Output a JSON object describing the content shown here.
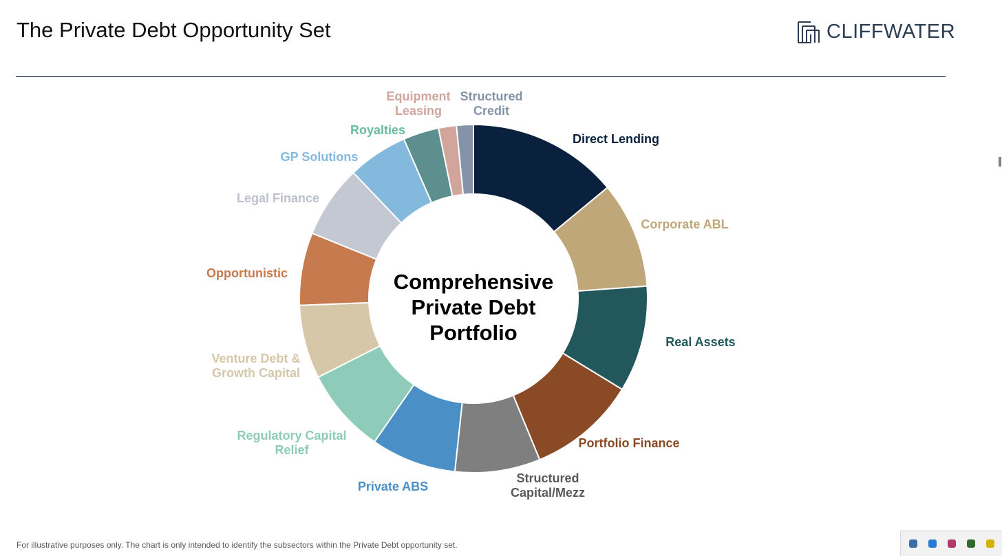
{
  "header": {
    "title": "The Private Debt Opportunity Set",
    "logo_text": "CLIFFWATER"
  },
  "footer": {
    "note": "For illustrative purposes only. The chart is only intended to identify the subsectors within the Private Debt opportunity set."
  },
  "chart_data": {
    "type": "pie",
    "center_label": [
      "Comprehensive",
      "Private Debt",
      "Portfolio"
    ],
    "title": "",
    "series": [
      {
        "label": "Direct Lending",
        "lines": [
          "Direct Lending"
        ],
        "value": 14.3,
        "color": "#0a213d"
      },
      {
        "label": "Corporate ABL",
        "lines": [
          "Corporate ABL"
        ],
        "value": 10.1,
        "color": "#bfa779"
      },
      {
        "label": "Real Assets",
        "lines": [
          "Real Assets"
        ],
        "value": 10.1,
        "color": "#22575b"
      },
      {
        "label": "Portfolio Finance",
        "lines": [
          "Portfolio Finance"
        ],
        "value": 10.3,
        "color": "#8b4a26"
      },
      {
        "label": "Structured Capital/Mezz",
        "lines": [
          "Structured",
          "Capital/Mezz"
        ],
        "value": 8.1,
        "color": "#7f7f7f"
      },
      {
        "label": "Private ABS",
        "lines": [
          "Private ABS"
        ],
        "value": 8.1,
        "color": "#4a8fc5"
      },
      {
        "label": "Regulatory Capital Relief",
        "lines": [
          "Regulatory Capital",
          "Relief"
        ],
        "value": 8.1,
        "color": "#8ecbb8"
      },
      {
        "label": "Venture Debt & Growth Capital",
        "lines": [
          "Venture Debt &",
          "Growth Capital"
        ],
        "value": 7.0,
        "color": "#d6c7a8"
      },
      {
        "label": "Opportunistic",
        "lines": [
          "Opportunistic"
        ],
        "value": 6.9,
        "color": "#c67a4e"
      },
      {
        "label": "Legal Finance",
        "lines": [
          "Legal Finance"
        ],
        "value": 6.9,
        "color": "#c4c8d3"
      },
      {
        "label": "GP Solutions",
        "lines": [
          "GP Solutions"
        ],
        "value": 5.7,
        "color": "#84b9de"
      },
      {
        "label": "Royalties",
        "lines": [
          "Royalties"
        ],
        "value": 3.4,
        "color": "#5e8f8f"
      },
      {
        "label": "Equipment Leasing",
        "lines": [
          "Equipment",
          "Leasing"
        ],
        "value": 1.7,
        "color": "#d1a59b"
      },
      {
        "label": "Structured Credit",
        "lines": [
          "Structured",
          "Credit"
        ],
        "value": 1.6,
        "color": "#8494a8"
      }
    ],
    "label_colors": {
      "Direct Lending": "#0a213d",
      "Corporate ABL": "#bfa779",
      "Real Assets": "#22575b",
      "Portfolio Finance": "#8b4a26",
      "Structured Capital/Mezz": "#595959",
      "Private ABS": "#4a8fc5",
      "Regulatory Capital Relief": "#8ecbb8",
      "Venture Debt & Growth Capital": "#d6c7a8",
      "Opportunistic": "#c67a4e",
      "Legal Finance": "#bcc1cc",
      "GP Solutions": "#84b9de",
      "Royalties": "#6abca0",
      "Equipment Leasing": "#d1a59b",
      "Structured Credit": "#8494a8"
    }
  },
  "tray": {
    "icons": [
      "cloud-icon",
      "shield-icon",
      "people-icon",
      "gpu-icon",
      "status-icon"
    ],
    "colors": [
      "#3b6ea5",
      "#2a7bd4",
      "#b03a6a",
      "#2f6b2f",
      "#d4b100"
    ]
  }
}
